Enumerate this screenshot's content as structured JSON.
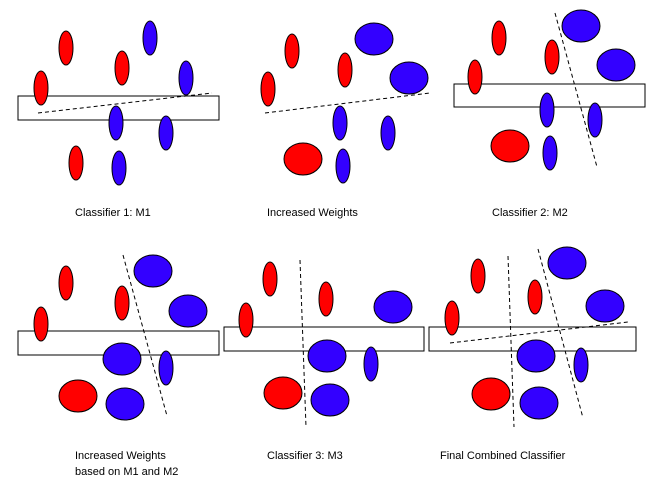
{
  "colors": {
    "red": "#ff0000",
    "blue": "#3300ff",
    "stroke": "#000000"
  },
  "panels": [
    {
      "caption": "Classifier 1: M1"
    },
    {
      "caption": "Increased Weights"
    },
    {
      "caption": "Classifier 2: M2"
    },
    {
      "caption_line1": "Increased Weights",
      "caption_line2": "based on M1 and M2"
    },
    {
      "caption": "Classifier 3: M3"
    },
    {
      "caption": "Final Combined Classifier"
    }
  ]
}
